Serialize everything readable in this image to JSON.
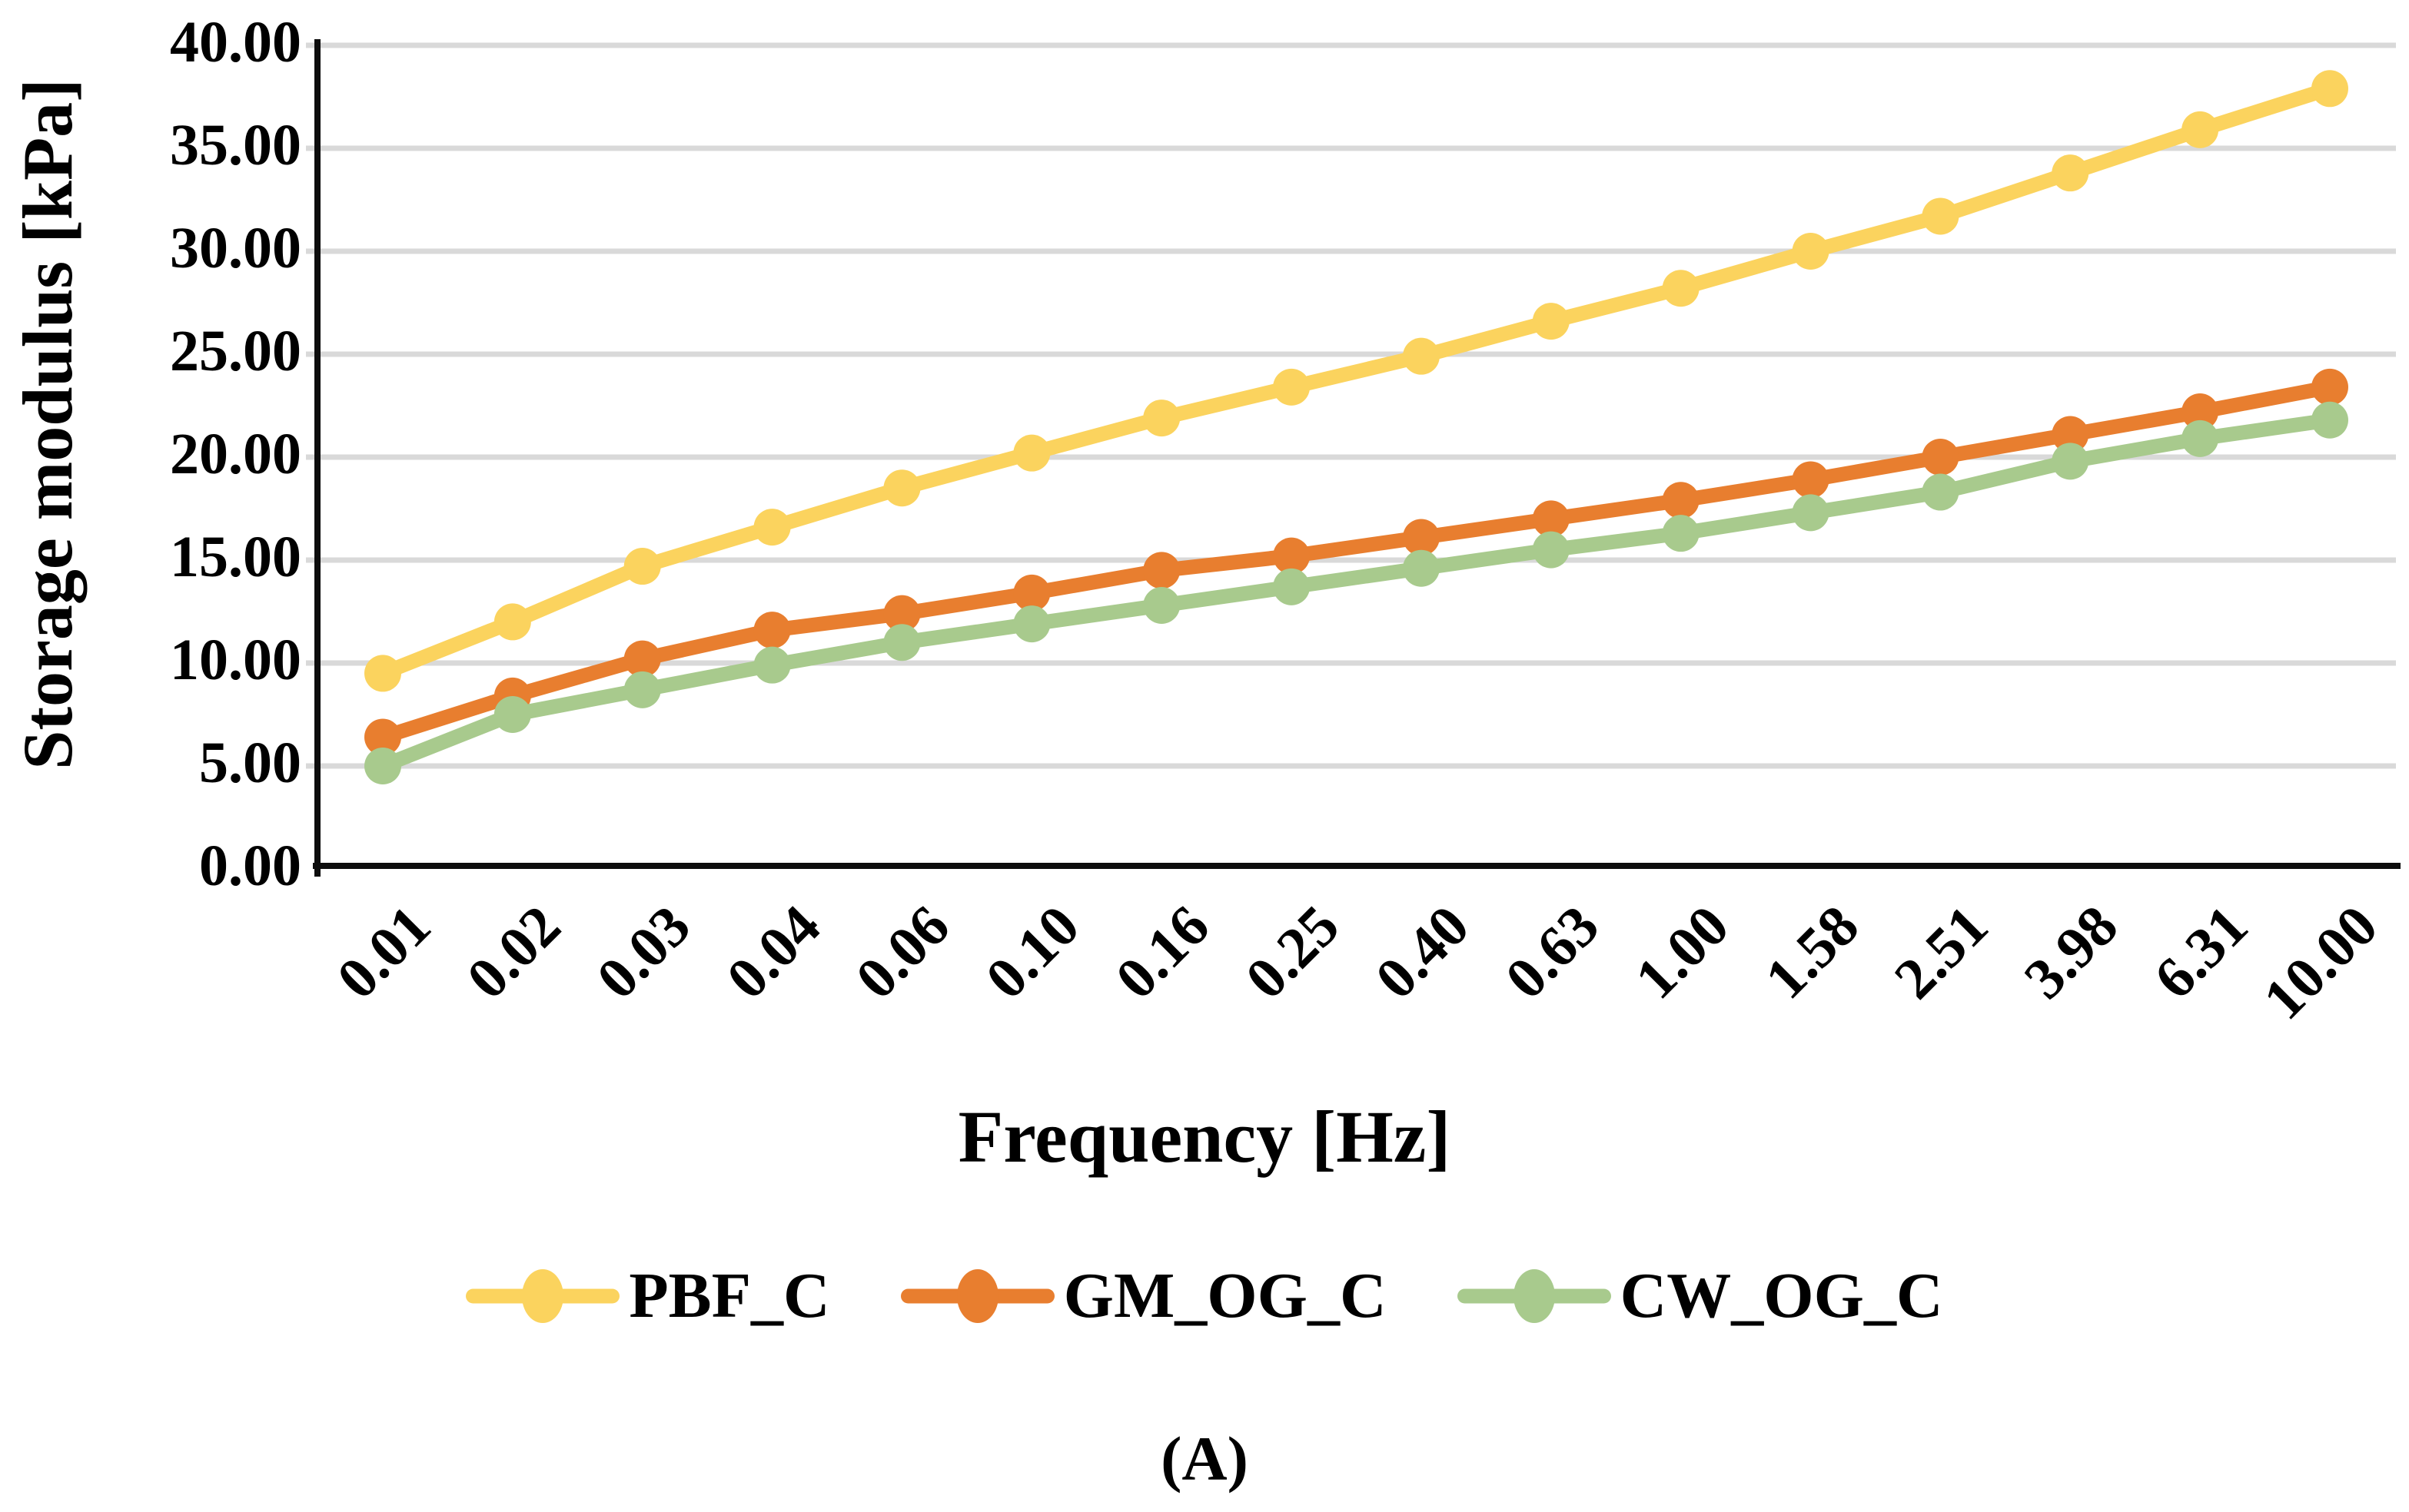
{
  "figure": {
    "caption": "(A)"
  },
  "chart_data": {
    "type": "line",
    "title": "",
    "xlabel": "Frequency [Hz]",
    "ylabel": "Storage modulus [kPa]",
    "categories": [
      "0.01",
      "0.02",
      "0.03",
      "0.04",
      "0.06",
      "0.10",
      "0.16",
      "0.25",
      "0.40",
      "0.63",
      "1.00",
      "1.58",
      "2.51",
      "3.98",
      "6.31",
      "10.00"
    ],
    "y_ticks": [
      "40.00",
      "35.00",
      "30.00",
      "25.00",
      "20.00",
      "15.00",
      "10.00",
      "5.00",
      "0.00"
    ],
    "ylim": [
      0,
      40
    ],
    "y_tick_step": 5,
    "grid": "horizontal",
    "gridline_color": "#d9d9d9",
    "axis_color": "#0d0d0d",
    "legend_position": "bottom",
    "series": [
      {
        "name": "PBF_C",
        "color": "#fbd35e",
        "values": [
          9.5,
          12.0,
          14.7,
          16.6,
          18.5,
          20.2,
          21.9,
          23.4,
          24.9,
          26.6,
          28.2,
          30.0,
          31.7,
          33.8,
          35.9,
          37.9
        ]
      },
      {
        "name": "GM_OG_C",
        "color": "#e87e2f",
        "values": [
          6.4,
          8.4,
          10.2,
          11.6,
          12.4,
          13.4,
          14.5,
          15.2,
          16.1,
          17.0,
          17.9,
          18.9,
          20.0,
          21.1,
          22.2,
          23.4
        ]
      },
      {
        "name": "CW_OG_C",
        "color": "#a8ca8d",
        "values": [
          5.0,
          7.5,
          8.7,
          9.9,
          11.0,
          11.9,
          12.8,
          13.7,
          14.6,
          15.5,
          16.3,
          17.3,
          18.3,
          19.8,
          20.9,
          21.8
        ]
      }
    ]
  }
}
